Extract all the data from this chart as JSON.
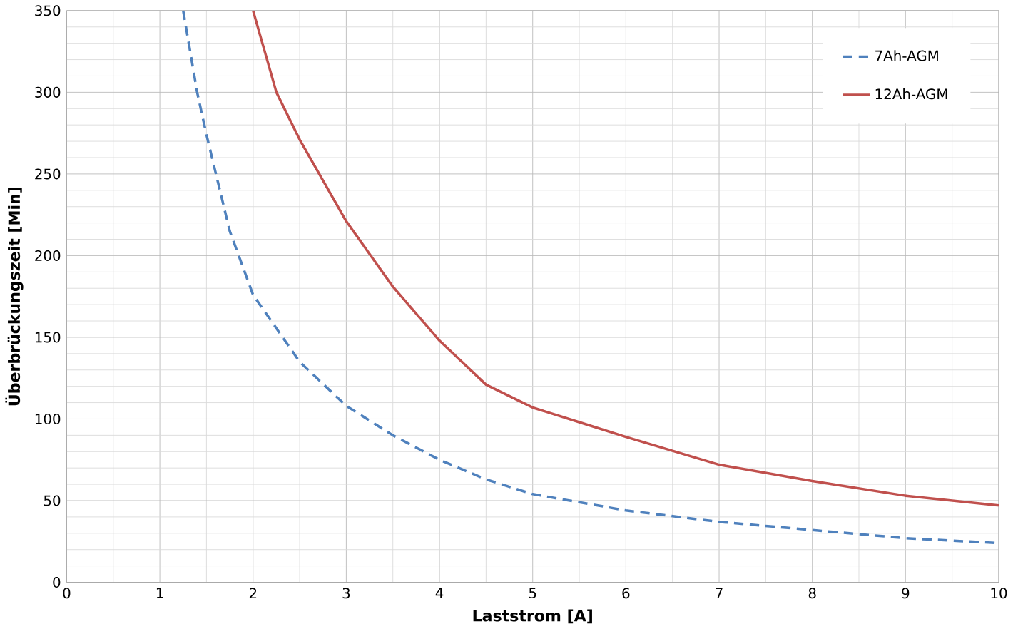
{
  "chart_data": {
    "type": "line",
    "xlabel": "Laststrom [A]",
    "ylabel": "Überbrückungszeit [Min]",
    "xlim": [
      0,
      10
    ],
    "ylim": [
      0,
      350
    ],
    "xticks": [
      0,
      1,
      2,
      3,
      4,
      5,
      6,
      7,
      8,
      9,
      10
    ],
    "yticks": [
      0,
      50,
      100,
      150,
      200,
      250,
      300,
      350
    ],
    "grid": true,
    "legend": "top right",
    "series": [
      {
        "name": "7Ah-AGM",
        "color": "#4f81bd",
        "line_style": "dashed",
        "x": [
          1.25,
          1.4,
          1.5,
          1.75,
          2,
          2.5,
          3,
          3.5,
          4,
          4.5,
          5,
          6,
          7,
          8,
          9,
          10
        ],
        "values": [
          350,
          300,
          274,
          215,
          176,
          135,
          108,
          90,
          75,
          63,
          54,
          44,
          37,
          32,
          27,
          24
        ]
      },
      {
        "name": "12Ah-AGM",
        "color": "#c0504d",
        "line_style": "solid",
        "x": [
          2,
          2.25,
          2.5,
          3,
          3.5,
          4,
          4.5,
          5,
          5.5,
          6,
          7,
          8,
          9,
          10
        ],
        "values": [
          350,
          300,
          271,
          221,
          181,
          148,
          121,
          107,
          98,
          89,
          72,
          62,
          53,
          47
        ]
      }
    ]
  }
}
